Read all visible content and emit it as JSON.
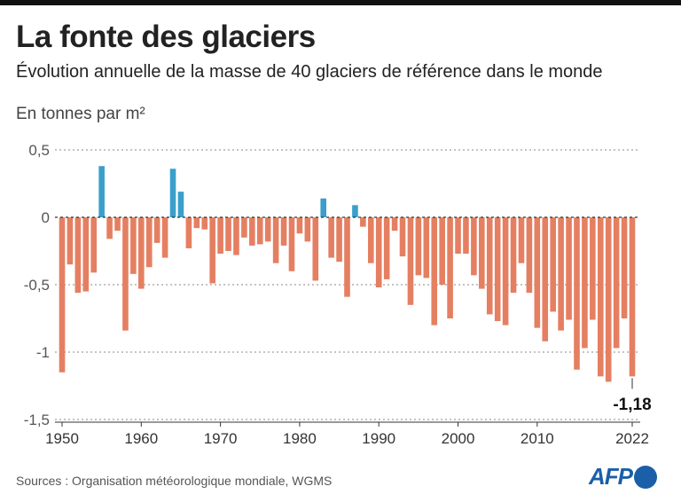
{
  "title": "La fonte des glaciers",
  "subtitle": "Évolution annuelle de la masse de 40 glaciers de référence dans le monde",
  "unit": "En tonnes par m²",
  "source": "Sources : Organisation météorologique mondiale, WGMS",
  "logo": "AFP",
  "colors": {
    "positive": "#3a9fcb",
    "negative": "#e57f62"
  },
  "chart_data": {
    "type": "bar",
    "title": "La fonte des glaciers",
    "ylabel": "En tonnes par m²",
    "ylim": [
      -1.5,
      0.5
    ],
    "yticks": [
      {
        "v": 0.5,
        "label": "0,5"
      },
      {
        "v": 0,
        "label": "0"
      },
      {
        "v": -0.5,
        "label": "-0,5"
      },
      {
        "v": -1,
        "label": "-1"
      },
      {
        "v": -1.5,
        "label": "-1,5"
      }
    ],
    "xticks": [
      1950,
      1960,
      1970,
      1980,
      1990,
      2000,
      2010,
      2022
    ],
    "start_year": 1950,
    "values": [
      -1.15,
      -0.35,
      -0.56,
      -0.55,
      -0.41,
      0.38,
      -0.16,
      -0.1,
      -0.84,
      -0.42,
      -0.53,
      -0.37,
      -0.19,
      -0.3,
      0.36,
      0.19,
      -0.23,
      -0.08,
      -0.09,
      -0.49,
      -0.27,
      -0.25,
      -0.28,
      -0.15,
      -0.21,
      -0.2,
      -0.18,
      -0.34,
      -0.21,
      -0.4,
      -0.12,
      -0.18,
      -0.47,
      0.14,
      -0.3,
      -0.33,
      -0.59,
      0.09,
      -0.07,
      -0.34,
      -0.52,
      -0.46,
      -0.1,
      -0.29,
      -0.65,
      -0.43,
      -0.45,
      -0.8,
      -0.5,
      -0.75,
      -0.27,
      -0.27,
      -0.43,
      -0.53,
      -0.72,
      -0.77,
      -0.8,
      -0.56,
      -0.34,
      -0.56,
      -0.82,
      -0.92,
      -0.7,
      -0.84,
      -0.76,
      -1.13,
      -0.97,
      -0.76,
      -1.18,
      -1.22,
      -0.97,
      -0.75,
      -1.18
    ],
    "annotation": {
      "year": 2022,
      "label": "-1,18"
    },
    "grid": true
  }
}
